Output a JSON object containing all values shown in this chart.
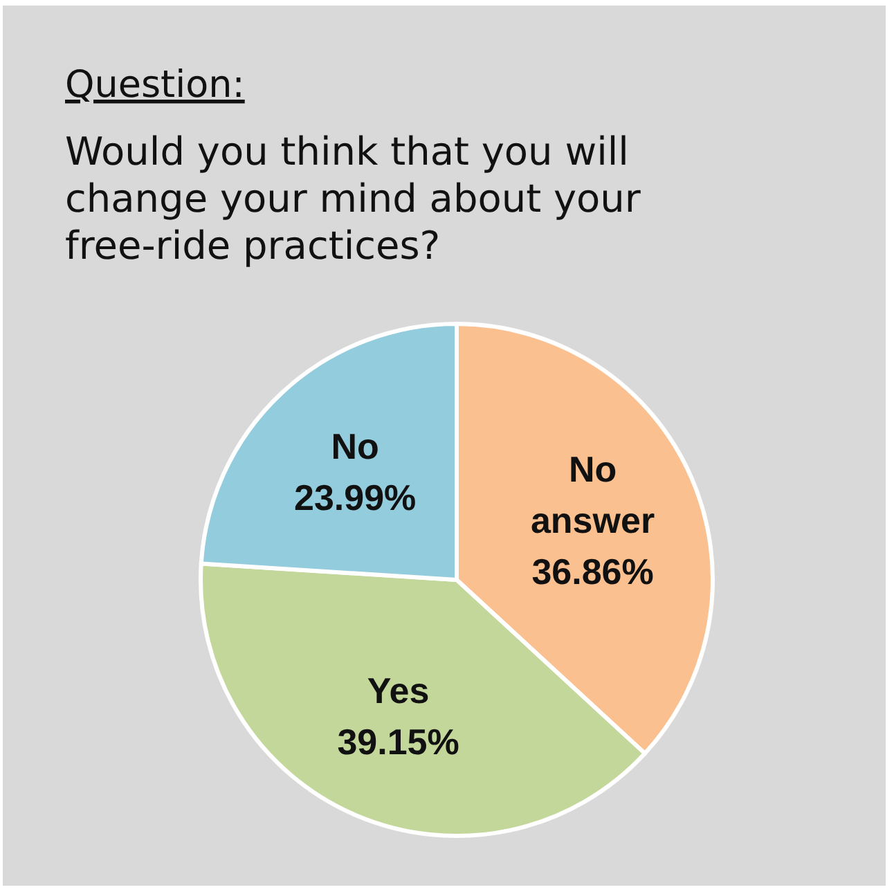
{
  "chart_data": {
    "type": "pie",
    "title": "Question:",
    "subtitle": "Would you think that you will change your mind about your free-ride practices?",
    "categories": [
      "No answer",
      "Yes",
      "No"
    ],
    "values": [
      36.86,
      39.15,
      23.99
    ],
    "colors": [
      "#fac090",
      "#c4d79b",
      "#93cddd"
    ],
    "value_labels": [
      "36.86%",
      "39.15%",
      "23.99%"
    ]
  }
}
